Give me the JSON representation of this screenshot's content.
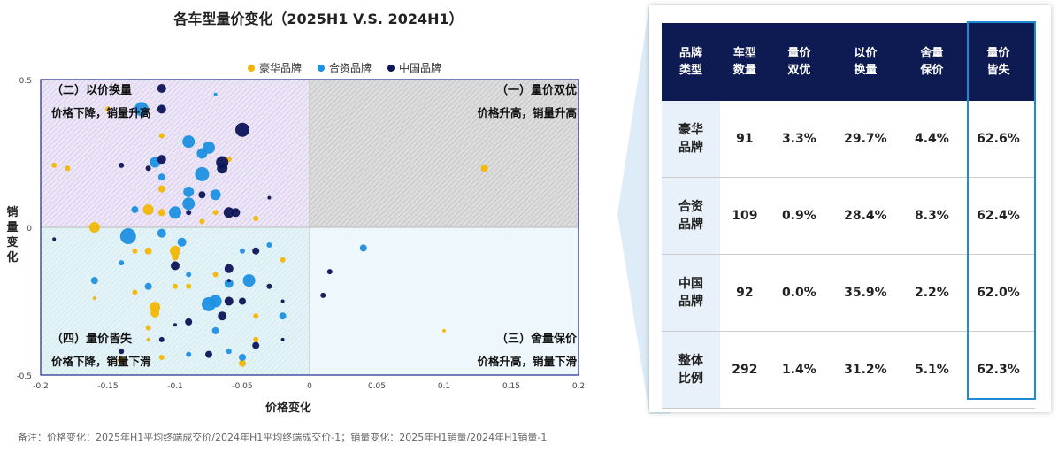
{
  "chart_title": "各车型量价变化（2025H1 V.S. 2024H1）",
  "legend": [
    {
      "label": "豪华品牌",
      "color": "#f2b705"
    },
    {
      "label": "合资品牌",
      "color": "#1e90e0"
    },
    {
      "label": "中国品牌",
      "color": "#0d1457"
    }
  ],
  "axis": {
    "xlabel": "价格变化",
    "ylabel_lines": [
      "销",
      "量",
      "变",
      "化"
    ],
    "x_ticks": [
      "-0.2",
      "-0.15",
      "-0.1",
      "-0.05",
      "0",
      "0.05",
      "0.1",
      "0.15",
      "0.2"
    ],
    "y_ticks": [
      "0.5",
      "0",
      "-0.5"
    ]
  },
  "quadrants": {
    "q2": {
      "title": "（二）以价换量",
      "sub": "价格下降，销量升高"
    },
    "q1": {
      "title": "（一）量价双优",
      "sub": "价格升高，销量升高"
    },
    "q4": {
      "title": "（四）量价皆失",
      "sub": "价格下降，销量下滑"
    },
    "q3": {
      "title": "（三）舍量保价",
      "sub": "价格升高，销量下滑"
    }
  },
  "footnote": "备注：价格变化：2025年H1平均终端成交价/2024年H1平均终端成交价-1；销量变化：2025年H1销量/2024年H1销量-1",
  "chart_data": {
    "type": "scatter",
    "title": "各车型量价变化（2025H1 V.S. 2024H1）",
    "xlabel": "价格变化",
    "ylabel": "销量变化",
    "xlim": [
      -0.2,
      0.2
    ],
    "ylim": [
      -0.5,
      0.5
    ],
    "legend_position": "top",
    "series": [
      {
        "name": "豪华品牌",
        "color": "#f2b705",
        "points": [
          {
            "x": -0.18,
            "y": 0.2,
            "s": 3
          },
          {
            "x": -0.15,
            "y": 0.4,
            "s": 3
          },
          {
            "x": -0.12,
            "y": 0.06,
            "s": 6
          },
          {
            "x": -0.11,
            "y": 0.05,
            "s": 4
          },
          {
            "x": -0.11,
            "y": 0.13,
            "s": 4
          },
          {
            "x": -0.16,
            "y": 0.0,
            "s": 6
          },
          {
            "x": -0.12,
            "y": -0.08,
            "s": 4
          },
          {
            "x": -0.1,
            "y": -0.08,
            "s": 6
          },
          {
            "x": -0.1,
            "y": -0.1,
            "s": 4
          },
          {
            "x": -0.13,
            "y": -0.08,
            "s": 3
          },
          {
            "x": -0.13,
            "y": -0.22,
            "s": 3
          },
          {
            "x": -0.115,
            "y": -0.27,
            "s": 6
          },
          {
            "x": -0.115,
            "y": -0.29,
            "s": 5
          },
          {
            "x": -0.14,
            "y": -0.45,
            "s": 4
          },
          {
            "x": -0.11,
            "y": -0.44,
            "s": 3
          },
          {
            "x": -0.05,
            "y": -0.46,
            "s": 4
          },
          {
            "x": -0.07,
            "y": 0.05,
            "s": 3
          },
          {
            "x": -0.04,
            "y": 0.03,
            "s": 3
          },
          {
            "x": -0.04,
            "y": -0.38,
            "s": 3
          },
          {
            "x": -0.06,
            "y": 0.23,
            "s": 3
          },
          {
            "x": 0.13,
            "y": 0.2,
            "s": 4
          },
          {
            "x": -0.04,
            "y": -0.3,
            "s": 3
          },
          {
            "x": -0.07,
            "y": -0.16,
            "s": 3
          },
          {
            "x": -0.09,
            "y": -0.2,
            "s": 3
          },
          {
            "x": -0.12,
            "y": -0.34,
            "s": 3
          },
          {
            "x": -0.02,
            "y": -0.11,
            "s": 3
          },
          {
            "x": -0.16,
            "y": -0.24,
            "s": 2
          },
          {
            "x": -0.19,
            "y": 0.21,
            "s": 3
          },
          {
            "x": -0.12,
            "y": -0.38,
            "s": 2
          },
          {
            "x": 0.1,
            "y": -0.35,
            "s": 2
          },
          {
            "x": -0.08,
            "y": 0.02,
            "s": 3
          },
          {
            "x": -0.11,
            "y": 0.31,
            "s": 3
          },
          {
            "x": -0.1,
            "y": -0.2,
            "s": 3
          }
        ]
      },
      {
        "name": "合资品牌",
        "color": "#1e90e0",
        "points": [
          {
            "x": -0.125,
            "y": 0.4,
            "s": 8
          },
          {
            "x": -0.09,
            "y": 0.29,
            "s": 7
          },
          {
            "x": -0.08,
            "y": 0.25,
            "s": 6
          },
          {
            "x": -0.075,
            "y": 0.27,
            "s": 7
          },
          {
            "x": -0.08,
            "y": 0.18,
            "s": 8
          },
          {
            "x": -0.115,
            "y": 0.22,
            "s": 6
          },
          {
            "x": -0.09,
            "y": 0.12,
            "s": 6
          },
          {
            "x": -0.07,
            "y": 0.11,
            "s": 6
          },
          {
            "x": -0.09,
            "y": 0.08,
            "s": 7
          },
          {
            "x": -0.1,
            "y": 0.05,
            "s": 7
          },
          {
            "x": -0.135,
            "y": -0.03,
            "s": 9
          },
          {
            "x": -0.11,
            "y": -0.02,
            "s": 5
          },
          {
            "x": -0.095,
            "y": -0.05,
            "s": 5
          },
          {
            "x": -0.045,
            "y": -0.18,
            "s": 7
          },
          {
            "x": -0.07,
            "y": -0.25,
            "s": 7
          },
          {
            "x": -0.075,
            "y": -0.26,
            "s": 8
          },
          {
            "x": -0.02,
            "y": -0.3,
            "s": 4
          },
          {
            "x": -0.06,
            "y": -0.19,
            "s": 5
          },
          {
            "x": -0.07,
            "y": -0.35,
            "s": 4
          },
          {
            "x": -0.12,
            "y": -0.2,
            "s": 4
          },
          {
            "x": -0.16,
            "y": -0.18,
            "s": 4
          },
          {
            "x": 0.04,
            "y": -0.07,
            "s": 4
          },
          {
            "x": -0.05,
            "y": -0.44,
            "s": 4
          },
          {
            "x": -0.09,
            "y": -0.43,
            "s": 3
          },
          {
            "x": -0.06,
            "y": -0.42,
            "s": 3
          },
          {
            "x": -0.11,
            "y": 0.17,
            "s": 4
          },
          {
            "x": -0.05,
            "y": -0.08,
            "s": 3
          },
          {
            "x": -0.13,
            "y": 0.06,
            "s": 4
          },
          {
            "x": -0.07,
            "y": 0.45,
            "s": 2
          },
          {
            "x": -0.14,
            "y": -0.12,
            "s": 3
          },
          {
            "x": -0.09,
            "y": -0.16,
            "s": 3
          },
          {
            "x": -0.03,
            "y": -0.06,
            "s": 3
          }
        ]
      },
      {
        "name": "中国品牌",
        "color": "#0d1457",
        "points": [
          {
            "x": -0.11,
            "y": 0.47,
            "s": 5
          },
          {
            "x": -0.11,
            "y": 0.4,
            "s": 5
          },
          {
            "x": -0.05,
            "y": 0.33,
            "s": 8
          },
          {
            "x": -0.065,
            "y": 0.22,
            "s": 7
          },
          {
            "x": -0.065,
            "y": 0.2,
            "s": 6
          },
          {
            "x": -0.11,
            "y": 0.23,
            "s": 5
          },
          {
            "x": -0.06,
            "y": 0.05,
            "s": 6
          },
          {
            "x": -0.055,
            "y": 0.05,
            "s": 5
          },
          {
            "x": -0.08,
            "y": 0.11,
            "s": 4
          },
          {
            "x": -0.04,
            "y": -0.08,
            "s": 4
          },
          {
            "x": -0.06,
            "y": -0.14,
            "s": 5
          },
          {
            "x": -0.1,
            "y": -0.13,
            "s": 5
          },
          {
            "x": -0.065,
            "y": -0.3,
            "s": 5
          },
          {
            "x": -0.06,
            "y": -0.25,
            "s": 5
          },
          {
            "x": -0.05,
            "y": -0.25,
            "s": 4
          },
          {
            "x": -0.09,
            "y": -0.32,
            "s": 4
          },
          {
            "x": -0.075,
            "y": -0.43,
            "s": 4
          },
          {
            "x": -0.04,
            "y": -0.4,
            "s": 4
          },
          {
            "x": 0.015,
            "y": -0.15,
            "s": 3
          },
          {
            "x": 0.01,
            "y": -0.23,
            "s": 3
          },
          {
            "x": -0.14,
            "y": 0.21,
            "s": 3
          },
          {
            "x": -0.12,
            "y": 0.2,
            "s": 3
          },
          {
            "x": -0.03,
            "y": -0.2,
            "s": 3
          },
          {
            "x": -0.14,
            "y": -0.42,
            "s": 3
          },
          {
            "x": -0.02,
            "y": -0.38,
            "s": 2
          },
          {
            "x": -0.11,
            "y": -0.38,
            "s": 3
          },
          {
            "x": -0.1,
            "y": -0.33,
            "s": 2
          },
          {
            "x": -0.06,
            "y": -0.18,
            "s": 2
          },
          {
            "x": -0.09,
            "y": 0.05,
            "s": 3
          },
          {
            "x": -0.19,
            "y": -0.04,
            "s": 2
          },
          {
            "x": -0.03,
            "y": 0.1,
            "s": 2
          },
          {
            "x": -0.02,
            "y": -0.25,
            "s": 2
          }
        ]
      }
    ]
  },
  "table": {
    "headers": [
      [
        "品牌",
        "类型"
      ],
      [
        "车型",
        "数量"
      ],
      [
        "量价",
        "双优"
      ],
      [
        "以价",
        "换量"
      ],
      [
        "舍量",
        "保价"
      ],
      [
        "量价",
        "皆失"
      ]
    ],
    "rows": [
      {
        "type": [
          "豪华",
          "品牌"
        ],
        "count": "91",
        "v1": "3.3%",
        "v2": "29.7%",
        "v3": "4.4%",
        "v4": "62.6%"
      },
      {
        "type": [
          "合资",
          "品牌"
        ],
        "count": "109",
        "v1": "0.9%",
        "v2": "28.4%",
        "v3": "8.3%",
        "v4": "62.4%"
      },
      {
        "type": [
          "中国",
          "品牌"
        ],
        "count": "92",
        "v1": "0.0%",
        "v2": "35.9%",
        "v3": "2.2%",
        "v4": "62.0%"
      },
      {
        "type": [
          "整体",
          "比例"
        ],
        "count": "292",
        "v1": "1.4%",
        "v2": "31.2%",
        "v3": "5.1%",
        "v4": "62.3%"
      }
    ]
  }
}
